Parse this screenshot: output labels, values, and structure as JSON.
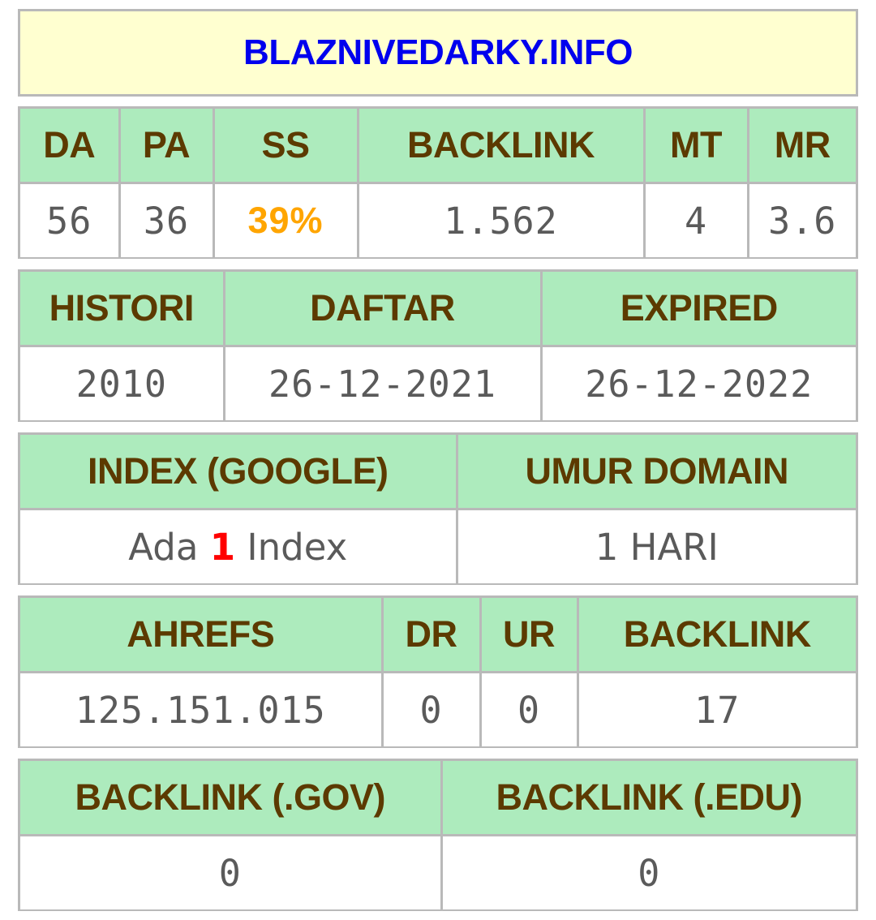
{
  "title": "BLAZNIVEDARKY.INFO",
  "moz": {
    "headers": [
      "DA",
      "PA",
      "SS",
      "BACKLINK",
      "MT",
      "MR"
    ],
    "values": [
      "56",
      "36",
      "39%",
      "1.562",
      "4",
      "3.6"
    ]
  },
  "dates": {
    "headers": [
      "HISTORI",
      "DAFTAR",
      "EXPIRED"
    ],
    "values": [
      "2010",
      "26-12-2021",
      "26-12-2022"
    ]
  },
  "index": {
    "headers": [
      "INDEX (GOOGLE)",
      "UMUR DOMAIN"
    ],
    "index_prefix": "Ada",
    "index_count": "1",
    "index_suffix": "Index",
    "age": "1 HARI"
  },
  "ahrefs": {
    "headers": [
      "AHREFS",
      "DR",
      "UR",
      "BACKLINK"
    ],
    "values": [
      "125.151.015",
      "0",
      "0",
      "17"
    ]
  },
  "edu_gov": {
    "headers": [
      "BACKLINK (.GOV)",
      "BACKLINK (.EDU)"
    ],
    "values": [
      "0",
      "0"
    ]
  },
  "colors": {
    "title_bg": "#ffffd0",
    "title_text": "#0000ee",
    "header_bg": "#adebbd",
    "header_text": "#5c3a00",
    "value_text": "#5a5a5a",
    "ss_text": "#ffa500",
    "index_count_text": "#ff0000",
    "border": "#b9b9b9"
  }
}
